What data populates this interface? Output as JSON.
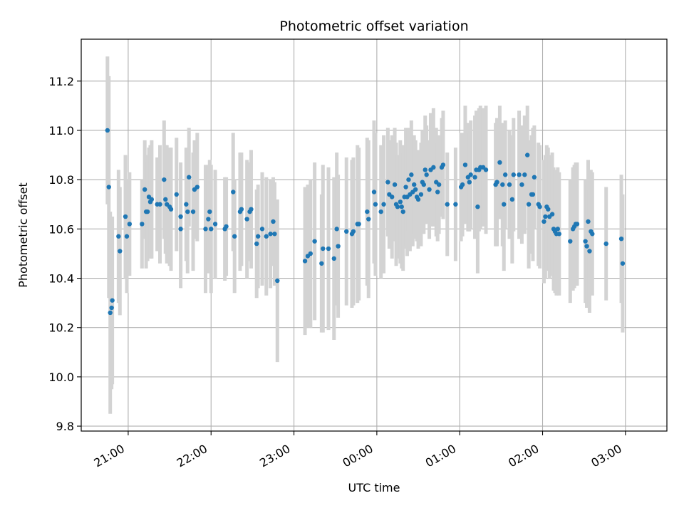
{
  "chart_data": {
    "type": "scatter",
    "title": "Photometric offset variation",
    "xlabel": "UTC time",
    "ylabel": "Photometric offset",
    "x_unit": "minutes",
    "x_ticks": [
      {
        "value": 1260,
        "label": "21:00"
      },
      {
        "value": 1320,
        "label": "22:00"
      },
      {
        "value": 1380,
        "label": "23:00"
      },
      {
        "value": 1440,
        "label": "00:00"
      },
      {
        "value": 1500,
        "label": "01:00"
      },
      {
        "value": 1560,
        "label": "02:00"
      },
      {
        "value": 1620,
        "label": "03:00"
      }
    ],
    "xlim": [
      1226,
      1650
    ],
    "ylim": [
      9.78,
      11.37
    ],
    "y_ticks": [
      9.8,
      10.0,
      10.2,
      10.4,
      10.6,
      10.8,
      11.0,
      11.2
    ],
    "y_tick_labels": [
      "9.8",
      "10.0",
      "10.2",
      "10.4",
      "10.6",
      "10.8",
      "11.0",
      "11.2"
    ],
    "grid": true,
    "colors": {
      "point": "#1f77b4",
      "errorbar": "#d3d3d3",
      "grid": "#b0b0b0"
    },
    "series": [
      {
        "points": [
          [
            1245,
            11.0,
            0.3
          ],
          [
            1246,
            10.77,
            0.45
          ],
          [
            1247,
            10.26,
            0.41
          ],
          [
            1248,
            10.28,
            0.33
          ],
          [
            1248.5,
            10.31,
            0.34
          ],
          [
            1253,
            10.57,
            0.27
          ],
          [
            1254,
            10.51,
            0.26
          ],
          [
            1258,
            10.65,
            0.25
          ],
          [
            1259,
            10.57,
            0.23
          ],
          [
            1261,
            10.62,
            0.21
          ],
          [
            1270,
            10.62,
            0.18
          ],
          [
            1272,
            10.76,
            0.2
          ],
          [
            1273,
            10.67,
            0.23
          ],
          [
            1274,
            10.67,
            0.2
          ],
          [
            1275,
            10.73,
            0.2
          ],
          [
            1276,
            10.71,
            0.23
          ],
          [
            1277,
            10.72,
            0.24
          ],
          [
            1281,
            10.7,
            0.19
          ],
          [
            1283,
            10.7,
            0.24
          ],
          [
            1286,
            10.8,
            0.24
          ],
          [
            1287,
            10.72,
            0.22
          ],
          [
            1288,
            10.7,
            0.24
          ],
          [
            1290,
            10.69,
            0.24
          ],
          [
            1291,
            10.68,
            0.25
          ],
          [
            1295,
            10.74,
            0.23
          ],
          [
            1298,
            10.6,
            0.24
          ],
          [
            1298,
            10.65,
            0.22
          ],
          [
            1302,
            10.7,
            0.23
          ],
          [
            1303,
            10.67,
            0.25
          ],
          [
            1304,
            10.81,
            0.2
          ],
          [
            1307,
            10.67,
            0.24
          ],
          [
            1308,
            10.76,
            0.2
          ],
          [
            1310,
            10.77,
            0.22
          ],
          [
            1316,
            10.6,
            0.26
          ],
          [
            1318,
            10.64,
            0.22
          ],
          [
            1319,
            10.67,
            0.21
          ],
          [
            1320,
            10.6,
            0.26
          ],
          [
            1323,
            10.62,
            0.22
          ],
          [
            1330,
            10.6,
            0.21
          ],
          [
            1331,
            10.61,
            0.2
          ],
          [
            1336,
            10.75,
            0.24
          ],
          [
            1337,
            10.57,
            0.23
          ],
          [
            1341,
            10.67,
            0.24
          ],
          [
            1342,
            10.68,
            0.23
          ],
          [
            1346,
            10.64,
            0.24
          ],
          [
            1348,
            10.67,
            0.2
          ],
          [
            1349,
            10.68,
            0.24
          ],
          [
            1353,
            10.54,
            0.22
          ],
          [
            1354,
            10.57,
            0.21
          ],
          [
            1357,
            10.6,
            0.23
          ],
          [
            1360,
            10.57,
            0.24
          ],
          [
            1363,
            10.58,
            0.22
          ],
          [
            1365,
            10.63,
            0.18
          ],
          [
            1366,
            10.58,
            0.21
          ],
          [
            1368,
            10.39,
            0.33
          ],
          [
            1388,
            10.47,
            0.3
          ],
          [
            1390,
            10.49,
            0.29
          ],
          [
            1392,
            10.5,
            0.3
          ],
          [
            1395,
            10.55,
            0.32
          ],
          [
            1400,
            10.46,
            0.28
          ],
          [
            1401,
            10.52,
            0.34
          ],
          [
            1405,
            10.52,
            0.33
          ],
          [
            1409,
            10.48,
            0.33
          ],
          [
            1411,
            10.6,
            0.31
          ],
          [
            1412,
            10.53,
            0.29
          ],
          [
            1418,
            10.59,
            0.3
          ],
          [
            1422,
            10.58,
            0.3
          ],
          [
            1423,
            10.59,
            0.3
          ],
          [
            1426,
            10.62,
            0.32
          ],
          [
            1427,
            10.62,
            0.31
          ],
          [
            1433,
            10.67,
            0.3
          ],
          [
            1434,
            10.64,
            0.32
          ],
          [
            1438,
            10.75,
            0.29
          ],
          [
            1439,
            10.7,
            0.29
          ],
          [
            1443,
            10.67,
            0.27
          ],
          [
            1445,
            10.7,
            0.28
          ],
          [
            1448,
            10.79,
            0.22
          ],
          [
            1449,
            10.74,
            0.22
          ],
          [
            1451,
            10.73,
            0.25
          ],
          [
            1453,
            10.78,
            0.23
          ],
          [
            1454,
            10.7,
            0.25
          ],
          [
            1455,
            10.69,
            0.21
          ],
          [
            1457,
            10.71,
            0.25
          ],
          [
            1458,
            10.69,
            0.25
          ],
          [
            1459,
            10.67,
            0.24
          ],
          [
            1460,
            10.73,
            0.21
          ],
          [
            1461,
            10.77,
            0.24
          ],
          [
            1462,
            10.73,
            0.24
          ],
          [
            1463,
            10.8,
            0.21
          ],
          [
            1464,
            10.74,
            0.23
          ],
          [
            1465,
            10.82,
            0.22
          ],
          [
            1466,
            10.75,
            0.22
          ],
          [
            1467,
            10.78,
            0.2
          ],
          [
            1468,
            10.76,
            0.2
          ],
          [
            1469,
            10.73,
            0.18
          ],
          [
            1470,
            10.72,
            0.2
          ],
          [
            1472,
            10.74,
            0.21
          ],
          [
            1473,
            10.79,
            0.21
          ],
          [
            1474,
            10.78,
            0.2
          ],
          [
            1475,
            10.84,
            0.22
          ],
          [
            1476,
            10.82,
            0.2
          ],
          [
            1478,
            10.76,
            0.2
          ],
          [
            1479,
            10.84,
            0.23
          ],
          [
            1481,
            10.85,
            0.24
          ],
          [
            1483,
            10.79,
            0.22
          ],
          [
            1484,
            10.75,
            0.2
          ],
          [
            1485,
            10.78,
            0.2
          ],
          [
            1487,
            10.85,
            0.2
          ],
          [
            1488,
            10.86,
            0.22
          ],
          [
            1491,
            10.7,
            0.21
          ],
          [
            1497,
            10.7,
            0.23
          ],
          [
            1501,
            10.77,
            0.22
          ],
          [
            1502,
            10.78,
            0.21
          ],
          [
            1504,
            10.86,
            0.24
          ],
          [
            1506,
            10.81,
            0.22
          ],
          [
            1507,
            10.79,
            0.2
          ],
          [
            1508,
            10.82,
            0.22
          ],
          [
            1511,
            10.81,
            0.25
          ],
          [
            1512,
            10.84,
            0.24
          ],
          [
            1513,
            10.69,
            0.27
          ],
          [
            1514,
            10.84,
            0.25
          ],
          [
            1515,
            10.85,
            0.25
          ],
          [
            1517,
            10.85,
            0.24
          ],
          [
            1519,
            10.84,
            0.26
          ],
          [
            1526,
            10.78,
            0.25
          ],
          [
            1527,
            10.79,
            0.26
          ],
          [
            1529,
            10.87,
            0.23
          ],
          [
            1531,
            10.78,
            0.25
          ],
          [
            1532,
            10.7,
            0.27
          ],
          [
            1533,
            10.82,
            0.22
          ],
          [
            1536,
            10.78,
            0.22
          ],
          [
            1538,
            10.72,
            0.26
          ],
          [
            1539,
            10.82,
            0.23
          ],
          [
            1543,
            10.82,
            0.26
          ],
          [
            1545,
            10.78,
            0.24
          ],
          [
            1547,
            10.82,
            0.24
          ],
          [
            1549,
            10.9,
            0.2
          ],
          [
            1550,
            10.7,
            0.26
          ],
          [
            1552,
            10.74,
            0.24
          ],
          [
            1553,
            10.74,
            0.27
          ],
          [
            1554,
            10.81,
            0.21
          ],
          [
            1557,
            10.7,
            0.25
          ],
          [
            1558,
            10.69,
            0.25
          ],
          [
            1561,
            10.63,
            0.25
          ],
          [
            1562,
            10.65,
            0.25
          ],
          [
            1563,
            10.69,
            0.25
          ],
          [
            1564,
            10.68,
            0.25
          ],
          [
            1565,
            10.65,
            0.25
          ],
          [
            1567,
            10.66,
            0.25
          ],
          [
            1568,
            10.6,
            0.25
          ],
          [
            1569,
            10.59,
            0.25
          ],
          [
            1570,
            10.58,
            0.25
          ],
          [
            1571,
            10.6,
            0.25
          ],
          [
            1572,
            10.58,
            0.25
          ],
          [
            1580,
            10.55,
            0.25
          ],
          [
            1582,
            10.6,
            0.25
          ],
          [
            1583,
            10.61,
            0.25
          ],
          [
            1584,
            10.62,
            0.25
          ],
          [
            1585,
            10.62,
            0.25
          ],
          [
            1591,
            10.55,
            0.25
          ],
          [
            1592,
            10.53,
            0.25
          ],
          [
            1593,
            10.63,
            0.25
          ],
          [
            1594,
            10.51,
            0.25
          ],
          [
            1595,
            10.59,
            0.25
          ],
          [
            1596,
            10.58,
            0.25
          ],
          [
            1606,
            10.54,
            0.23
          ],
          [
            1617,
            10.56,
            0.26
          ],
          [
            1618,
            10.46,
            0.28
          ]
        ]
      }
    ]
  }
}
